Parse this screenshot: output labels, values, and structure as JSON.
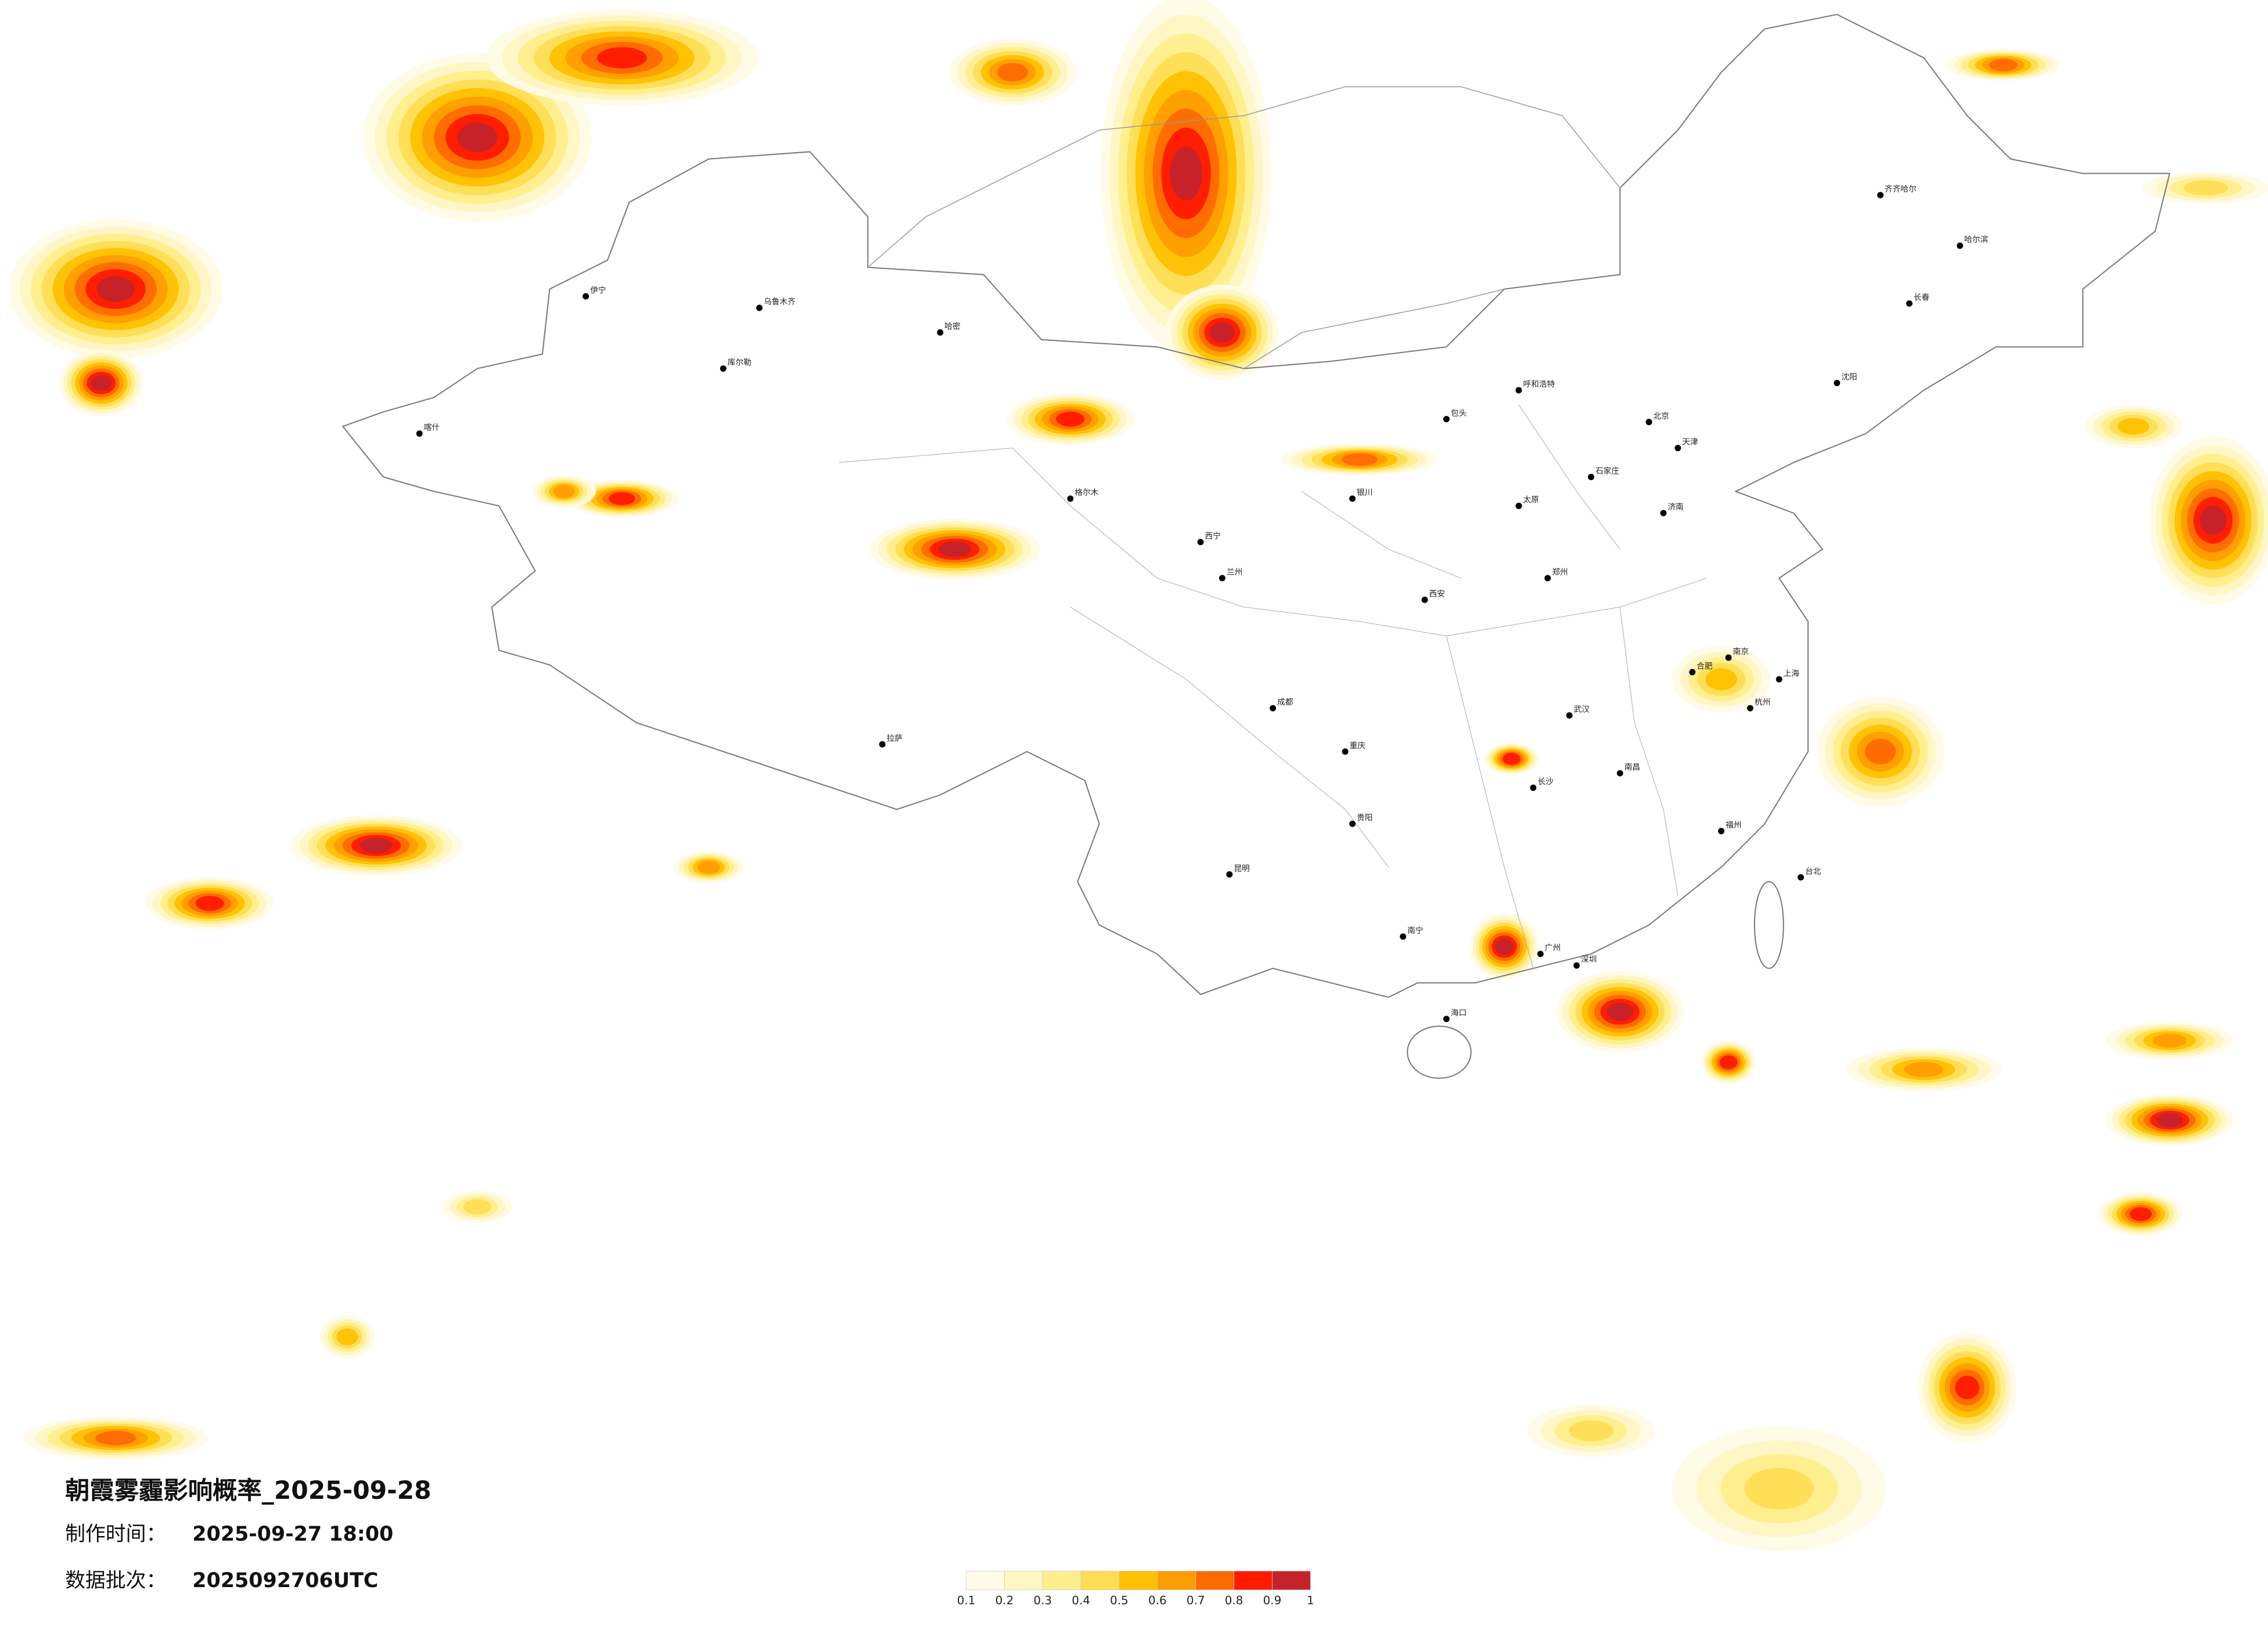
{
  "title": "朝霞雾霾影响概率_2025-09-28",
  "made_time": {
    "label": "制作时间：",
    "value": "2025-09-27 18:00"
  },
  "batch": {
    "label": "数据批次：",
    "value": "2025092706UTC"
  },
  "legend": {
    "colors": [
      "#fffbe6",
      "#fff6c4",
      "#ffee8c",
      "#ffdd55",
      "#ffc000",
      "#ff9d00",
      "#ff6a00",
      "#ff1a00",
      "#c4232b"
    ],
    "ticks": [
      0.1,
      0.2,
      0.3,
      0.4,
      0.5,
      0.6,
      0.7,
      0.8,
      0.9,
      1
    ]
  },
  "cities": [
    "北京",
    "天津",
    "上海",
    "广州",
    "深圳",
    "重庆",
    "成都",
    "西安",
    "武汉",
    "长沙",
    "南京",
    "杭州",
    "福州",
    "南昌",
    "合肥",
    "郑州",
    "济南",
    "石家庄",
    "太原",
    "呼和浩特",
    "沈阳",
    "长春",
    "哈尔滨",
    "兰州",
    "西宁",
    "银川",
    "乌鲁木齐",
    "拉萨",
    "昆明",
    "贵阳",
    "南宁",
    "海口",
    "台北",
    "齐齐哈尔",
    "喀什",
    "伊宁",
    "库尔勒",
    "哈密",
    "格尔木",
    "包头"
  ]
}
